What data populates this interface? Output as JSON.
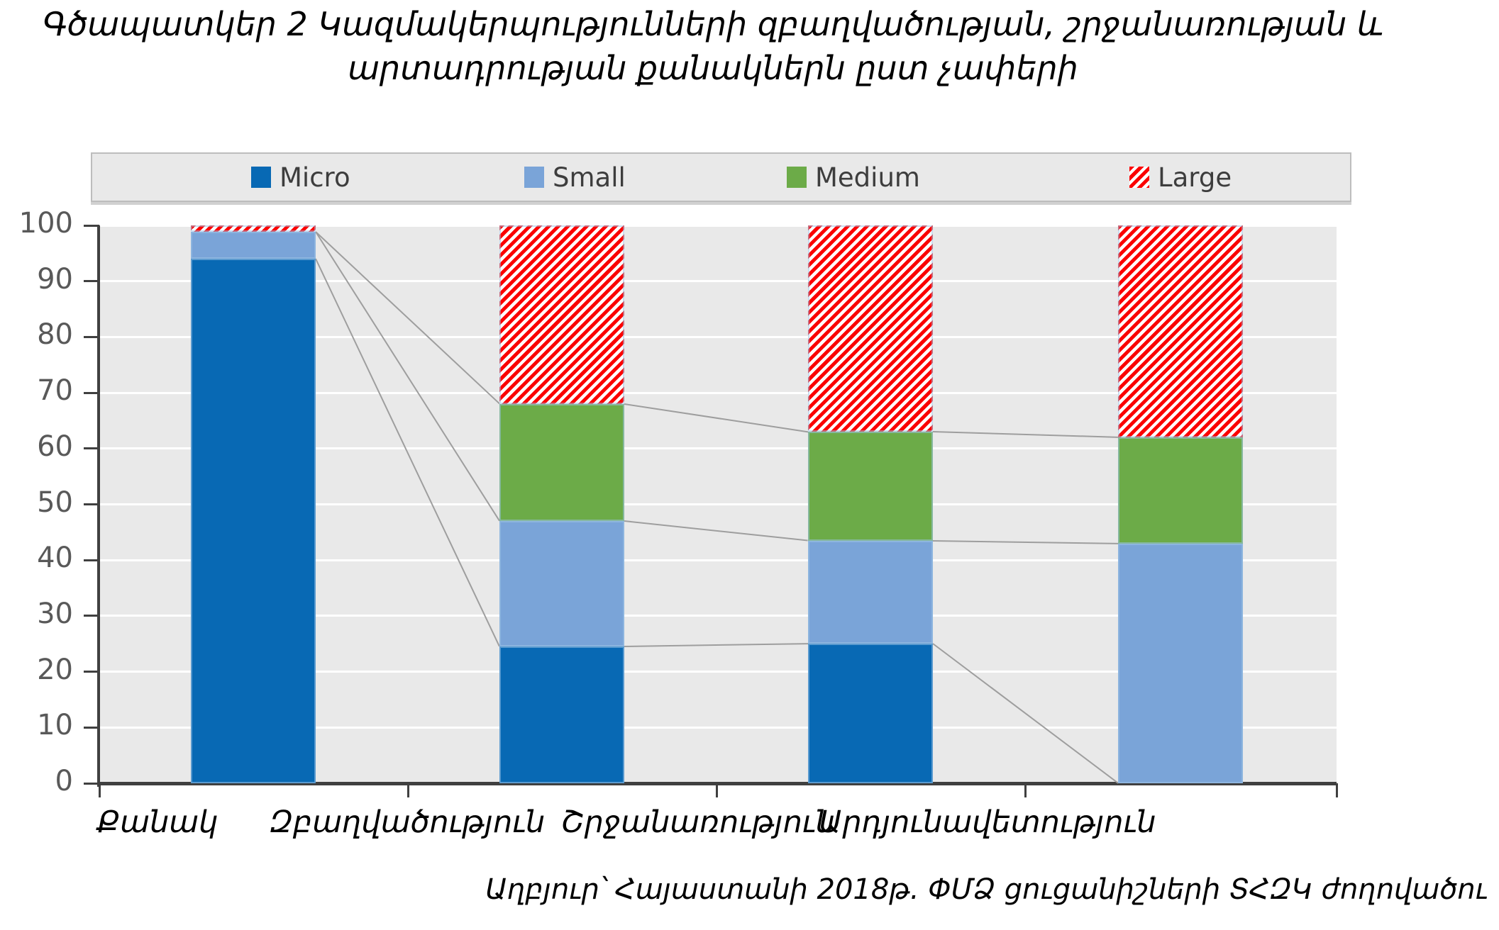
{
  "title": {
    "line1": "Գծապատկեր 2 Կազմակերպությունների զբաղվածության, շրջանառության և",
    "line2": "արտադրության քանակներն ըստ չափերի"
  },
  "source": "Աղբյուր՝ Հայաստանի 2018թ. ՓՄՁ ցուցանիշների ՏՀԶԿ ժողովածու",
  "legend": {
    "items": [
      "Micro",
      "Small",
      "Medium",
      "Large"
    ]
  },
  "y_axis": {
    "min": 0,
    "max": 100,
    "step": 10,
    "tick_labels": [
      "0",
      "10",
      "20",
      "30",
      "40",
      "50",
      "60",
      "70",
      "80",
      "90",
      "100"
    ]
  },
  "style": {
    "plot_background": "#e9e9e9",
    "gridline_color": "#ffffff",
    "axis_color": "#404040",
    "connector_color": "#9e9e9e",
    "ylabel_color": "#595959",
    "segment_outline": "#9dc3e6",
    "hatch_background": "#ffffff"
  },
  "chart_data": {
    "type": "bar",
    "stacked": true,
    "title": "Գծապատկեր 2 Կազմակերպությունների զբաղվածության, շրջանառության և արտադրության քանակներն ըստ չափերի",
    "categories": [
      "Քանակ",
      "Զբաղվածություն",
      "Շրջանառություն",
      "Արդյունավետություն"
    ],
    "series": [
      {
        "name": "Micro",
        "color": "#0869b4",
        "hatch": false,
        "values": [
          94,
          24.5,
          25,
          0
        ]
      },
      {
        "name": "Small",
        "color": "#7aa4d8",
        "hatch": false,
        "values": [
          4.8,
          22.5,
          18.5,
          43
        ]
      },
      {
        "name": "Medium",
        "color": "#6cab48",
        "hatch": false,
        "values": [
          0,
          21,
          19.5,
          19
        ]
      },
      {
        "name": "Large",
        "color": "#fb0000",
        "hatch": true,
        "values": [
          1.2,
          32,
          37,
          38
        ]
      }
    ],
    "ylim": [
      0,
      100
    ],
    "ytick_step": 10,
    "grid": true,
    "legend_position": "top",
    "series_connector_lines": true,
    "xlabel": "",
    "ylabel": "",
    "source_note": "Աղբյուր՝ Հայաստանի 2018թ. ՓՄՁ ցուցանիշների ՏՀԶԿ ժողովածու"
  }
}
